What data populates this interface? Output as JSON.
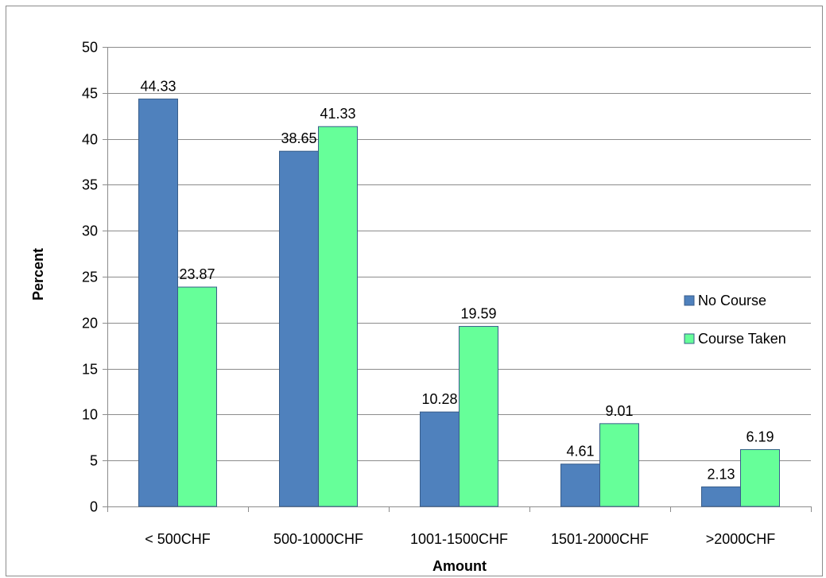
{
  "chart_data": {
    "type": "bar",
    "title": "",
    "xlabel": "Amount",
    "ylabel": "Percent",
    "ylim": [
      0,
      50
    ],
    "ytick_step": 5,
    "grid": true,
    "legend_position": "right",
    "categories": [
      "< 500CHF",
      "500-1000CHF",
      "1001-1500CHF",
      "1501-2000CHF",
      ">2000CHF"
    ],
    "series": [
      {
        "name": "No Course",
        "color": "#4F81BD",
        "values": [
          44.33,
          38.65,
          10.28,
          4.61,
          2.13
        ]
      },
      {
        "name": "Course Taken",
        "color": "#66FF99",
        "values": [
          23.87,
          41.33,
          19.59,
          9.01,
          6.19
        ]
      }
    ]
  }
}
